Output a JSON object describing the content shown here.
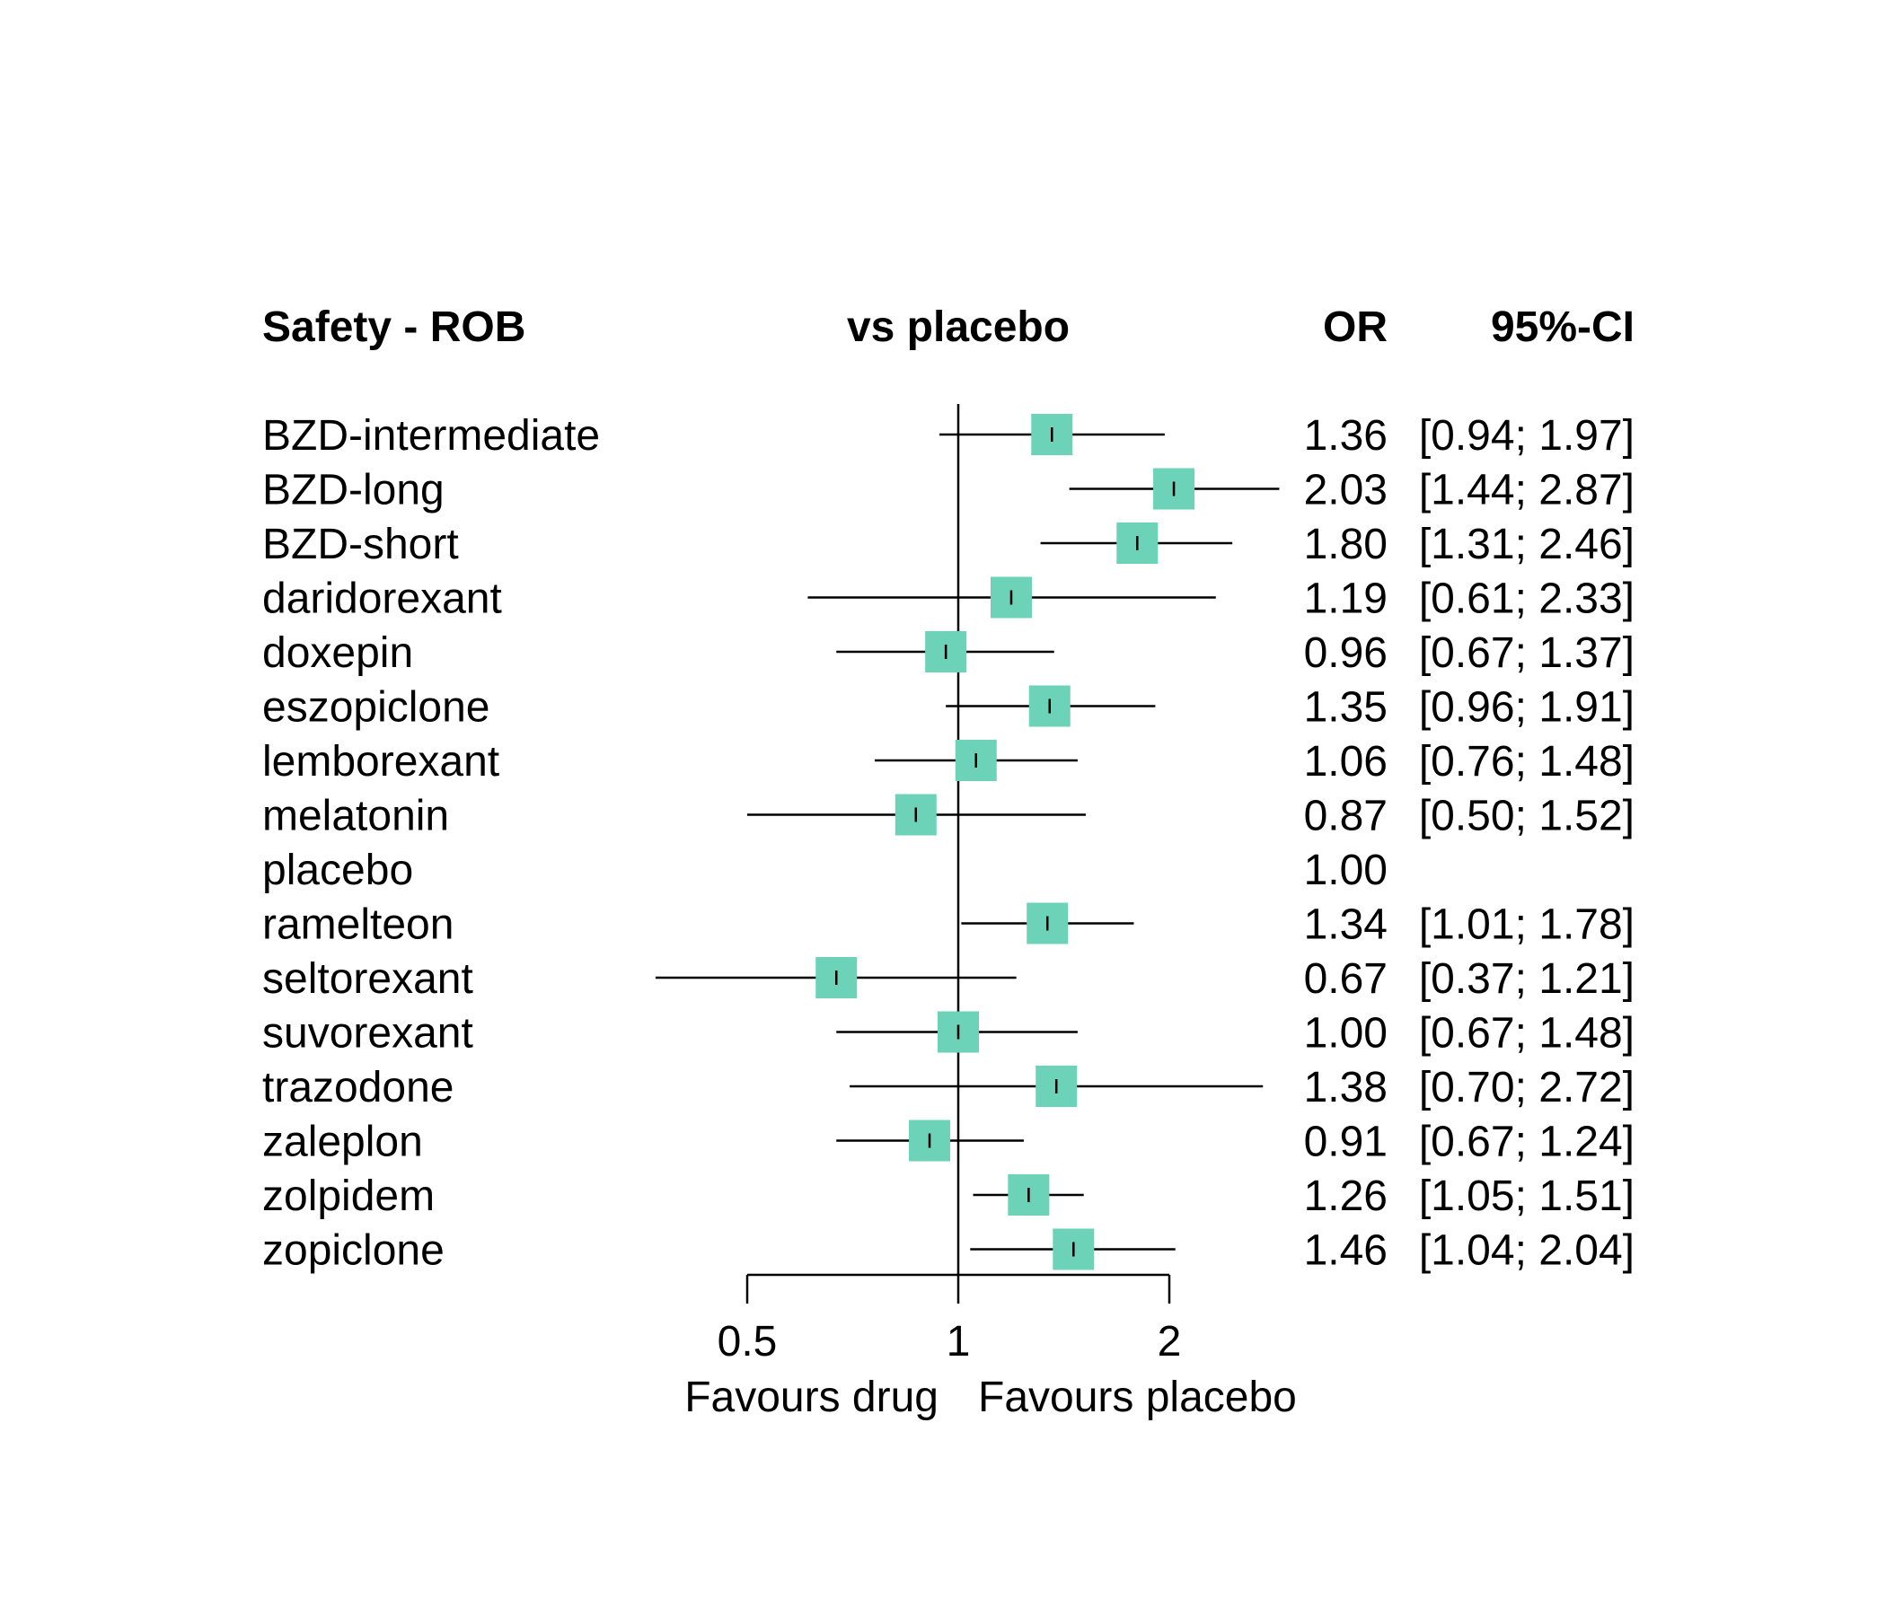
{
  "chart_data": {
    "type": "forest",
    "headers": {
      "label": "Safety - ROB",
      "comparison": "vs placebo",
      "estimate": "OR",
      "ci": "95%-CI"
    },
    "rows": [
      {
        "name": "BZD-intermediate",
        "or": 1.36,
        "lower": 0.94,
        "upper": 1.97,
        "or_text": "1.36",
        "ci_text": "[0.94; 1.97]"
      },
      {
        "name": "BZD-long",
        "or": 2.03,
        "lower": 1.44,
        "upper": 2.87,
        "or_text": "2.03",
        "ci_text": "[1.44; 2.87]"
      },
      {
        "name": "BZD-short",
        "or": 1.8,
        "lower": 1.31,
        "upper": 2.46,
        "or_text": "1.80",
        "ci_text": "[1.31; 2.46]"
      },
      {
        "name": "daridorexant",
        "or": 1.19,
        "lower": 0.61,
        "upper": 2.33,
        "or_text": "1.19",
        "ci_text": "[0.61; 2.33]"
      },
      {
        "name": "doxepin",
        "or": 0.96,
        "lower": 0.67,
        "upper": 1.37,
        "or_text": "0.96",
        "ci_text": "[0.67; 1.37]"
      },
      {
        "name": "eszopiclone",
        "or": 1.35,
        "lower": 0.96,
        "upper": 1.91,
        "or_text": "1.35",
        "ci_text": "[0.96; 1.91]"
      },
      {
        "name": "lemborexant",
        "or": 1.06,
        "lower": 0.76,
        "upper": 1.48,
        "or_text": "1.06",
        "ci_text": "[0.76; 1.48]"
      },
      {
        "name": "melatonin",
        "or": 0.87,
        "lower": 0.5,
        "upper": 1.52,
        "or_text": "0.87",
        "ci_text": "[0.50; 1.52]"
      },
      {
        "name": "placebo",
        "or": 1.0,
        "lower": null,
        "upper": null,
        "or_text": "1.00",
        "ci_text": ""
      },
      {
        "name": "ramelteon",
        "or": 1.34,
        "lower": 1.01,
        "upper": 1.78,
        "or_text": "1.34",
        "ci_text": "[1.01; 1.78]"
      },
      {
        "name": "seltorexant",
        "or": 0.67,
        "lower": 0.37,
        "upper": 1.21,
        "or_text": "0.67",
        "ci_text": "[0.37; 1.21]"
      },
      {
        "name": "suvorexant",
        "or": 1.0,
        "lower": 0.67,
        "upper": 1.48,
        "or_text": "1.00",
        "ci_text": "[0.67; 1.48]"
      },
      {
        "name": "trazodone",
        "or": 1.38,
        "lower": 0.7,
        "upper": 2.72,
        "or_text": "1.38",
        "ci_text": "[0.70; 2.72]"
      },
      {
        "name": "zaleplon",
        "or": 0.91,
        "lower": 0.67,
        "upper": 1.24,
        "or_text": "0.91",
        "ci_text": "[0.67; 1.24]"
      },
      {
        "name": "zolpidem",
        "or": 1.26,
        "lower": 1.05,
        "upper": 1.51,
        "or_text": "1.26",
        "ci_text": "[1.05; 1.51]"
      },
      {
        "name": "zopiclone",
        "or": 1.46,
        "lower": 1.04,
        "upper": 2.04,
        "or_text": "1.46",
        "ci_text": "[1.04; 2.04]"
      }
    ],
    "x_scale": "log",
    "reference_value": 1,
    "xlim": [
      0.5,
      2
    ],
    "x_ticks": [
      {
        "value": 0.5,
        "label": "0.5"
      },
      {
        "value": 1,
        "label": "1"
      },
      {
        "value": 2,
        "label": "2"
      }
    ],
    "xlabel_left": "Favours drug",
    "xlabel_right": "Favours placebo",
    "marker_color": "#6dd3b8"
  }
}
